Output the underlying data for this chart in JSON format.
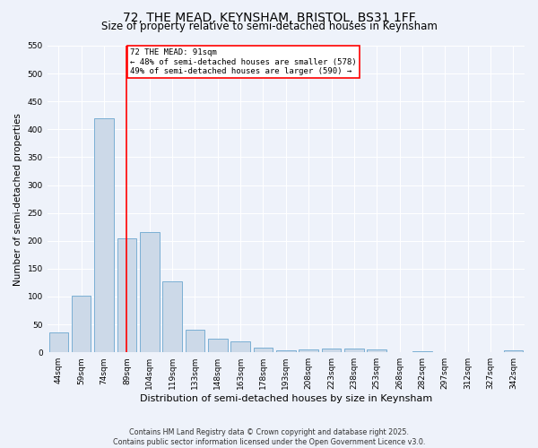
{
  "title": "72, THE MEAD, KEYNSHAM, BRISTOL, BS31 1FF",
  "subtitle": "Size of property relative to semi-detached houses in Keynsham",
  "xlabel": "Distribution of semi-detached houses by size in Keynsham",
  "ylabel": "Number of semi-detached properties",
  "bin_labels": [
    "44sqm",
    "59sqm",
    "74sqm",
    "89sqm",
    "104sqm",
    "119sqm",
    "133sqm",
    "148sqm",
    "163sqm",
    "178sqm",
    "193sqm",
    "208sqm",
    "223sqm",
    "238sqm",
    "253sqm",
    "268sqm",
    "282sqm",
    "297sqm",
    "312sqm",
    "327sqm",
    "342sqm"
  ],
  "bar_values": [
    35,
    102,
    420,
    204,
    215,
    127,
    41,
    25,
    19,
    9,
    4,
    5,
    7,
    6,
    5,
    0,
    2,
    0,
    0,
    0,
    3
  ],
  "bar_color": "#ccd9e8",
  "bar_edge_color": "#7aafd4",
  "vline_x": 3,
  "vline_color": "red",
  "annotation_text": "72 THE MEAD: 91sqm\n← 48% of semi-detached houses are smaller (578)\n49% of semi-detached houses are larger (590) →",
  "annotation_box_color": "white",
  "annotation_box_edge_color": "red",
  "ylim": [
    0,
    550
  ],
  "yticks": [
    0,
    50,
    100,
    150,
    200,
    250,
    300,
    350,
    400,
    450,
    500,
    550
  ],
  "footer_line1": "Contains HM Land Registry data © Crown copyright and database right 2025.",
  "footer_line2": "Contains public sector information licensed under the Open Government Licence v3.0.",
  "background_color": "#eef2fa",
  "grid_color": "#ffffff",
  "title_fontsize": 10,
  "subtitle_fontsize": 8.5,
  "tick_fontsize": 6.5,
  "axis_label_fontsize": 8,
  "ylabel_fontsize": 7.5,
  "footer_fontsize": 5.8
}
